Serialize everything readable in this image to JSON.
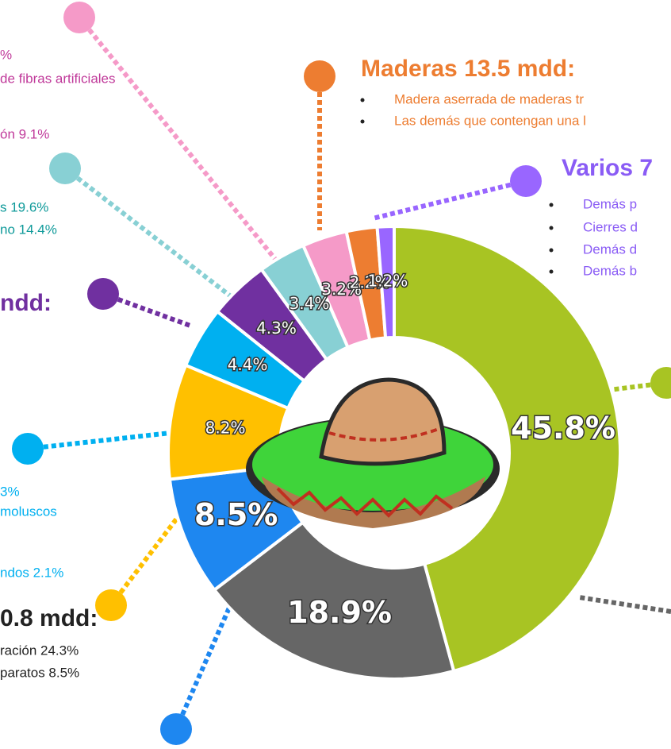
{
  "chart_data": {
    "type": "pie",
    "donut": true,
    "values": [
      45.8,
      18.9,
      8.5,
      8.2,
      4.4,
      4.3,
      3.4,
      3.2,
      2.2,
      1.2
    ],
    "value_labels": [
      "45.8%",
      "18.9%",
      "8.5%",
      "8.2%",
      "4.4%",
      "4.3%",
      "3.4%",
      "3.2%",
      "2.2%",
      "1.2%"
    ],
    "colors": [
      "#a8c423",
      "#666666",
      "#1e87f0",
      "#ffc000",
      "#00b0f0",
      "#7030a0",
      "#88d0d4",
      "#f59ac8",
      "#ed7d31",
      "#9966ff"
    ],
    "annotations": [
      {
        "text": "%",
        "color": "#c0399a"
      },
      {
        "text": "de fibras artificiales",
        "color": "#c0399a"
      },
      {
        "text": "ón 9.1%",
        "color": "#c0399a"
      },
      {
        "text": "s 19.6%",
        "color": "#0f9a9a"
      },
      {
        "text": "no 14.4%",
        "color": "#0f9a9a"
      },
      {
        "text": "ndd:",
        "color": "#7030a0",
        "bold": true
      },
      {
        "text": "3%",
        "color": "#00b0f0"
      },
      {
        "text": "moluscos",
        "color": "#00b0f0"
      },
      {
        "text": "ndos 2.1%",
        "color": "#00b0f0"
      },
      {
        "text": "0.8 mdd:",
        "color": "#222222",
        "bold": true
      },
      {
        "text": "ración 24.3%",
        "color": "#222222"
      },
      {
        "text": "paratos 8.5%",
        "color": "#222222"
      },
      {
        "text": "Maderas 13.5 mdd:",
        "color": "#ed7d31",
        "bold": true
      },
      {
        "text": "Madera aserrada de maderas tr",
        "color": "#ed7d31"
      },
      {
        "text": "Las demás que contengan una l",
        "color": "#ed7d31"
      },
      {
        "text": "Varios 7",
        "color": "#8a5cf5",
        "bold": true
      },
      {
        "text": "Demás p",
        "color": "#8a5cf5"
      },
      {
        "text": "Cierres d",
        "color": "#8a5cf5"
      },
      {
        "text": "Demás d",
        "color": "#8a5cf5"
      },
      {
        "text": "Demás b",
        "color": "#8a5cf5"
      }
    ]
  }
}
